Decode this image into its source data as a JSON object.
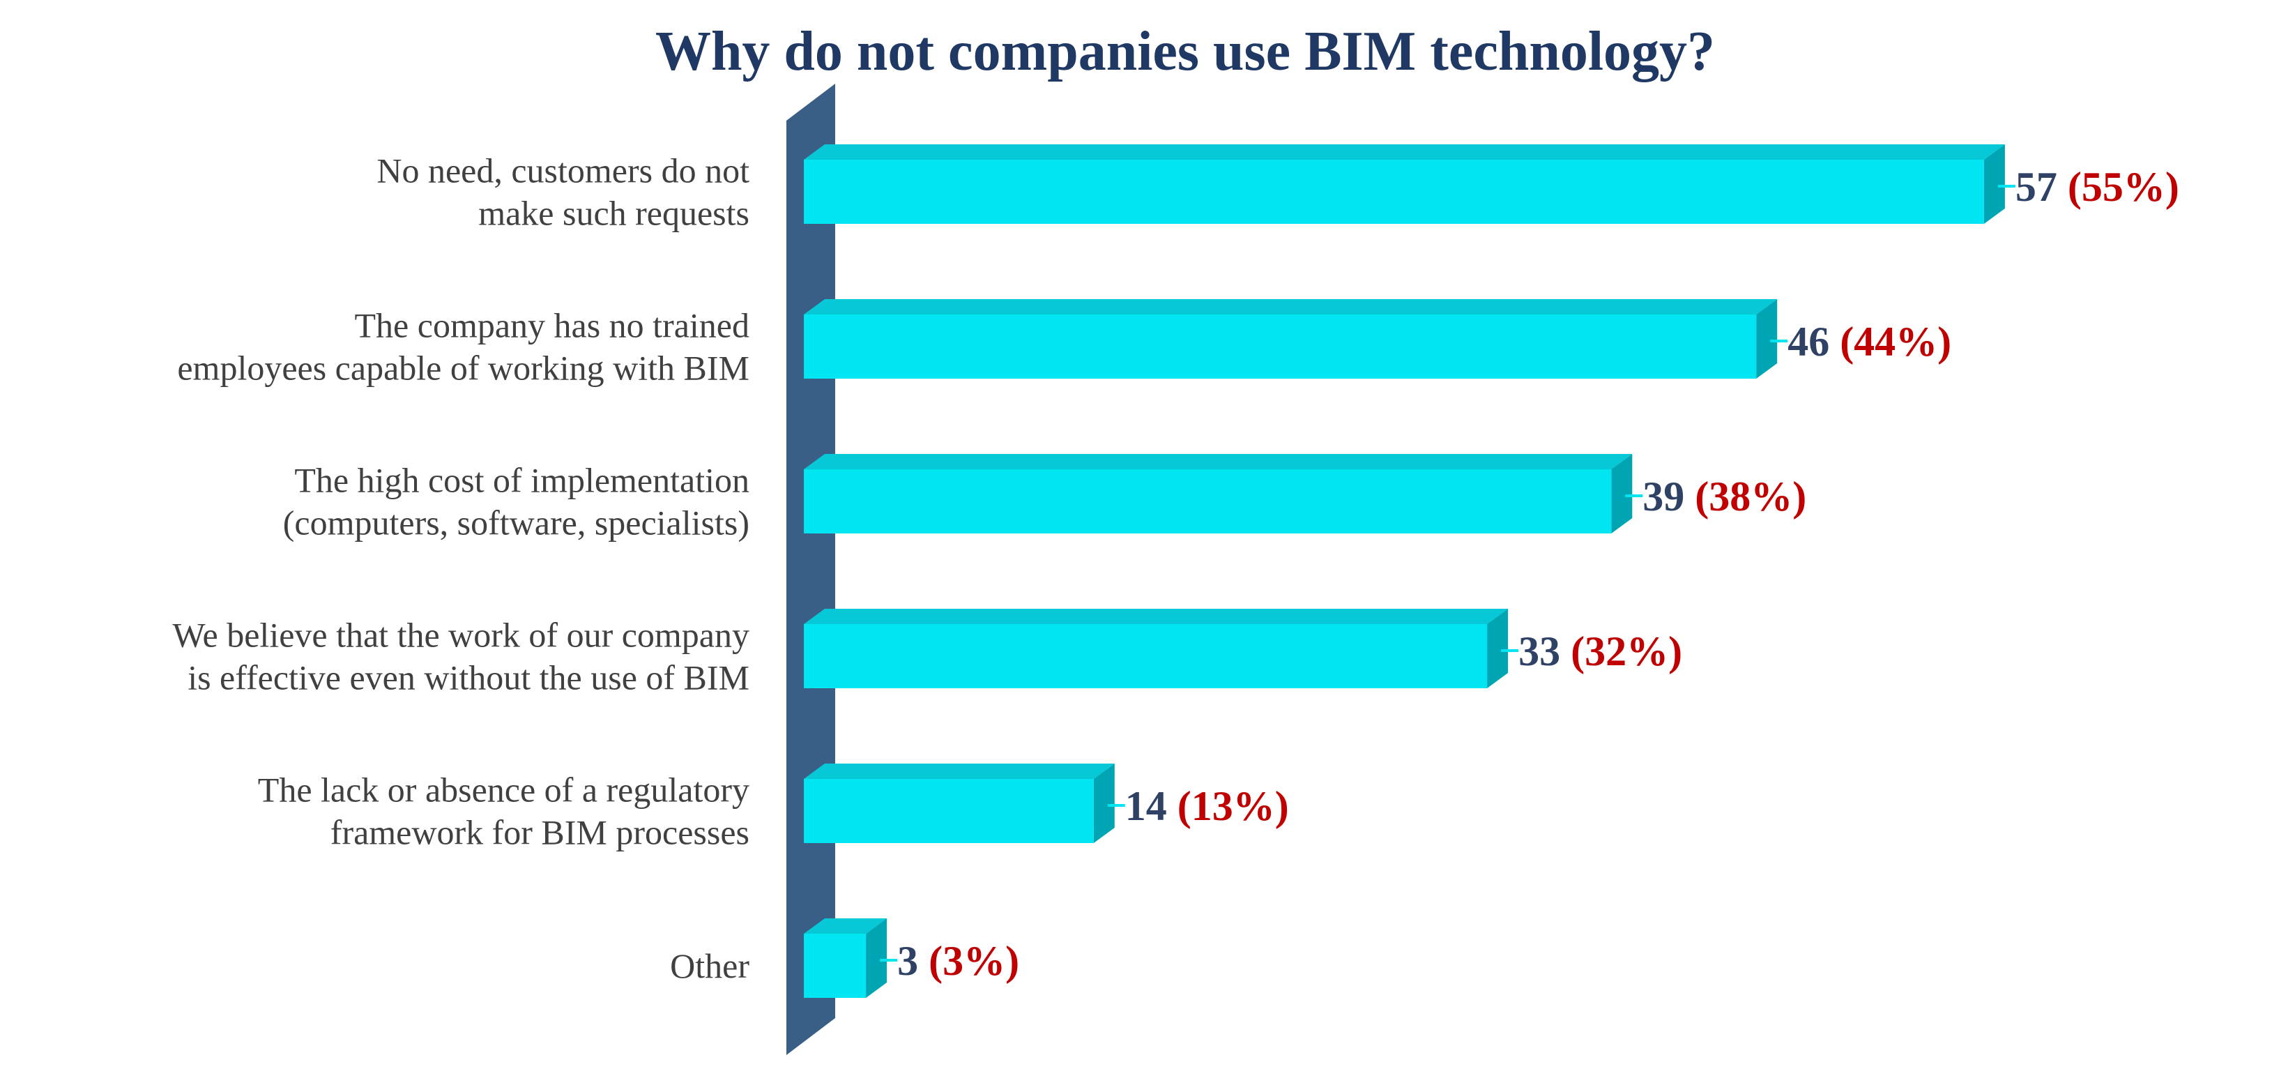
{
  "chart_data": {
    "type": "bar",
    "orientation": "horizontal",
    "style": "3d",
    "title": "Why do not companies use BIM technology?",
    "xlabel": "",
    "ylabel": "",
    "xlim": [
      0,
      60
    ],
    "grid": false,
    "legend": "none",
    "categories": [
      [
        "No need, customers do not",
        "make such requests"
      ],
      [
        "The company has no trained",
        "employees capable of working with BIM"
      ],
      [
        "The high cost of implementation",
        "(computers, software, specialists)"
      ],
      [
        "We believe that the work of our company",
        "is effective even without the use of BIM"
      ],
      [
        "The lack or absence of a regulatory",
        "framework for BIM processes"
      ],
      [
        "Other"
      ]
    ],
    "values": [
      57,
      46,
      39,
      33,
      14,
      3
    ],
    "percentages": [
      55,
      44,
      38,
      32,
      13,
      3
    ],
    "value_labels": [
      "57",
      "46",
      "39",
      "33",
      "14",
      "3"
    ],
    "percentage_labels": [
      "(55%)",
      "(44%)",
      "(38%)",
      "(32%)",
      "(13%)",
      "(3%)"
    ],
    "colors": {
      "title": "#1f3864",
      "bar_front": "#00e5f2",
      "bar_top": "#06c8d6",
      "bar_side": "#00a5b3",
      "axis_wall": "#3a5f86",
      "category_text": "#404040",
      "value_text": "#2f4266",
      "percent_text": "#c00000"
    }
  }
}
